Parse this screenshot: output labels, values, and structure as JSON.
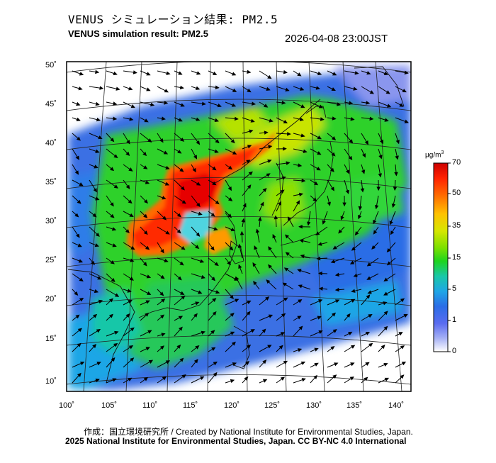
{
  "header": {
    "title_jp": "VENUS シミュレーション結果: PM2.5",
    "title_en": "VENUS simulation result: PM2.5",
    "timestamp": "2026-04-08 23:00JST"
  },
  "colorbar": {
    "unit_prefix": "μg/m",
    "unit_exp": "3",
    "ticks": [
      "70",
      "50",
      "35",
      "15",
      "5",
      "1",
      "0"
    ],
    "colors": [
      "#cc0000",
      "#ff2200",
      "#ff6a00",
      "#ffc200",
      "#d6e600",
      "#7be000",
      "#1ed41e",
      "#19c7a8",
      "#1fa6e6",
      "#2b6de6",
      "#5a6cf0",
      "#a7b2f5",
      "#ffffff"
    ]
  },
  "axes": {
    "lat_labels": [
      "50˚",
      "45˚",
      "40˚",
      "35˚",
      "30˚",
      "25˚",
      "20˚",
      "15˚",
      "10˚"
    ],
    "lon_labels": [
      "100˚",
      "105˚",
      "110˚",
      "115˚",
      "120˚",
      "125˚",
      "130˚",
      "135˚",
      "140˚"
    ]
  },
  "footer": {
    "credit": "作成：国立環境研究所 / Created by National Institute for Environmental Studies, Japan.",
    "license": "2025 National Institute for Environmental Studies, Japan. CC BY-NC 4.0 International"
  }
}
